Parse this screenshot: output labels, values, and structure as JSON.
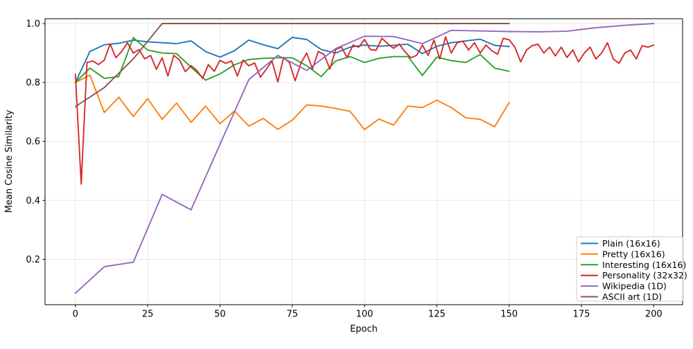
{
  "chart_data": {
    "type": "line",
    "title": "",
    "xlabel": "Epoch",
    "ylabel": "Mean Cosine Similarity",
    "xlim": [
      -10.5,
      210
    ],
    "ylim": [
      0.046,
      1.0165
    ],
    "grid": true,
    "legend_position": "lower right",
    "xticks": [
      0,
      25,
      50,
      75,
      100,
      125,
      150,
      175,
      200
    ],
    "xtick_labels": [
      "0",
      "25",
      "50",
      "75",
      "100",
      "125",
      "150",
      "175",
      "200"
    ],
    "yticks": [
      0.2,
      0.4,
      0.6,
      0.8,
      1.0
    ],
    "ytick_labels": [
      "0.2",
      "0.4",
      "0.6",
      "0.8",
      "1.0"
    ],
    "series": [
      {
        "name": "Plain (16x16)",
        "color": "#1f77b4",
        "x_start": 0,
        "x_step": 5,
        "values": [
          0.8,
          0.905,
          0.928,
          0.933,
          0.944,
          0.938,
          0.935,
          0.932,
          0.941,
          0.905,
          0.886,
          0.908,
          0.944,
          0.928,
          0.915,
          0.953,
          0.946,
          0.912,
          0.9,
          0.92,
          0.927,
          0.923,
          0.926,
          0.93,
          0.898,
          0.923,
          0.935,
          0.941,
          0.947,
          0.926,
          0.922
        ]
      },
      {
        "name": "Pretty (16x16)",
        "color": "#ff7f0e",
        "x_start": 0,
        "x_step": 5,
        "values": [
          0.8,
          0.825,
          0.698,
          0.75,
          0.685,
          0.745,
          0.675,
          0.73,
          0.665,
          0.72,
          0.66,
          0.703,
          0.652,
          0.678,
          0.641,
          0.672,
          0.724,
          0.72,
          0.712,
          0.702,
          0.64,
          0.676,
          0.655,
          0.72,
          0.715,
          0.74,
          0.715,
          0.68,
          0.675,
          0.65,
          0.732
        ]
      },
      {
        "name": "Interesting (16x16)",
        "color": "#2ca02c",
        "x_start": 0,
        "x_step": 5,
        "values": [
          0.8,
          0.849,
          0.814,
          0.82,
          0.952,
          0.91,
          0.9,
          0.898,
          0.852,
          0.808,
          0.829,
          0.86,
          0.878,
          0.882,
          0.884,
          0.884,
          0.857,
          0.82,
          0.873,
          0.888,
          0.868,
          0.882,
          0.888,
          0.888,
          0.824,
          0.886,
          0.874,
          0.868,
          0.895,
          0.849,
          0.838
        ]
      },
      {
        "name": "Personality (32x32)",
        "color": "#d62728",
        "x_start": 0,
        "x_step": 2,
        "values": [
          0.828,
          0.455,
          0.868,
          0.873,
          0.861,
          0.876,
          0.931,
          0.884,
          0.905,
          0.935,
          0.9,
          0.912,
          0.88,
          0.892,
          0.845,
          0.884,
          0.822,
          0.892,
          0.877,
          0.837,
          0.857,
          0.841,
          0.814,
          0.861,
          0.838,
          0.875,
          0.865,
          0.873,
          0.822,
          0.876,
          0.857,
          0.866,
          0.818,
          0.845,
          0.873,
          0.802,
          0.885,
          0.867,
          0.806,
          0.866,
          0.9,
          0.846,
          0.905,
          0.895,
          0.846,
          0.912,
          0.92,
          0.885,
          0.927,
          0.92,
          0.946,
          0.912,
          0.909,
          0.95,
          0.932,
          0.916,
          0.93,
          0.904,
          0.884,
          0.892,
          0.927,
          0.892,
          0.944,
          0.88,
          0.955,
          0.9,
          0.935,
          0.94,
          0.91,
          0.935,
          0.9,
          0.927,
          0.908,
          0.896,
          0.95,
          0.945,
          0.92,
          0.87,
          0.91,
          0.925,
          0.93,
          0.9,
          0.92,
          0.89,
          0.92,
          0.885,
          0.91,
          0.87,
          0.9,
          0.92,
          0.88,
          0.9,
          0.935,
          0.88,
          0.865,
          0.9,
          0.91,
          0.88,
          0.925,
          0.92,
          0.927
        ]
      },
      {
        "name": "Wikipedia (1D)",
        "color": "#9467bd",
        "x_start": 0,
        "x_step": 10,
        "values": [
          0.085,
          0.175,
          0.19,
          0.42,
          0.368,
          0.59,
          0.81,
          0.892,
          0.841,
          0.915,
          0.957,
          0.956,
          0.932,
          0.977,
          0.975,
          0.973,
          0.972,
          0.974,
          0.986,
          0.994,
          1.0
        ]
      },
      {
        "name": "ASCII art (1D)",
        "color": "#8c564b",
        "x_start": 0,
        "x_step": 10,
        "values": [
          0.718,
          0.783,
          0.88,
          1.0,
          1.0,
          1.0,
          1.0,
          1.0,
          1.0,
          1.0,
          1.0,
          1.0,
          1.0,
          1.0,
          1.0,
          1.0
        ]
      }
    ]
  }
}
